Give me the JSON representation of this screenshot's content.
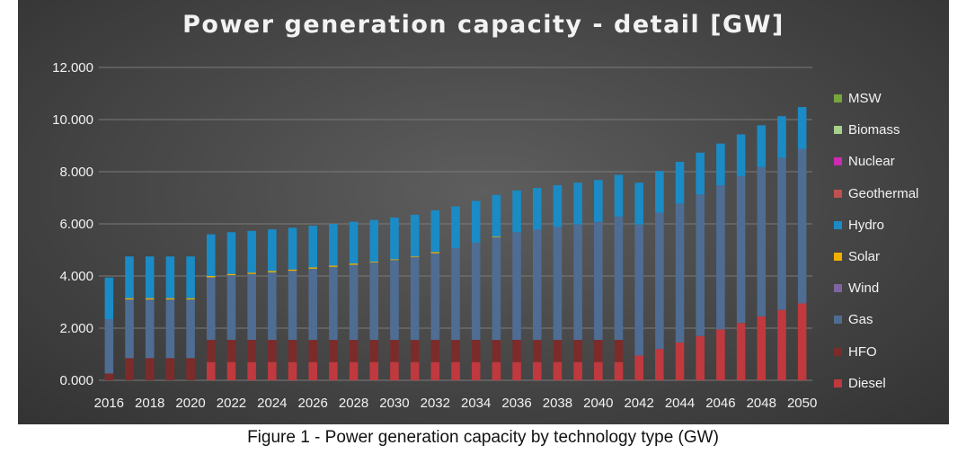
{
  "title": "Power generation capacity - detail [GW]",
  "caption": "Figure 1 - Power generation capacity by technology type (GW)",
  "chart_data": {
    "type": "bar",
    "stacked": true,
    "title": "Power generation capacity - detail [GW]",
    "xlabel": "",
    "ylabel": "",
    "ylim": [
      0,
      12000
    ],
    "yticks": [
      "0.000",
      "2.000",
      "4.000",
      "6.000",
      "8.000",
      "10.000",
      "12.000"
    ],
    "ytick_values": [
      0,
      2000,
      4000,
      6000,
      8000,
      10000,
      12000
    ],
    "grid": true,
    "legend_position": "right",
    "categories": [
      "2016",
      "2017",
      "2018",
      "2019",
      "2020",
      "2021",
      "2022",
      "2023",
      "2024",
      "2025",
      "2026",
      "2027",
      "2028",
      "2029",
      "2030",
      "2031",
      "2032",
      "2033",
      "2034",
      "2035",
      "2036",
      "2037",
      "2038",
      "2039",
      "2040",
      "2041",
      "2042",
      "2043",
      "2044",
      "2045",
      "2046",
      "2047",
      "2048",
      "2049",
      "2050"
    ],
    "xtick_labels": [
      "2016",
      "2018",
      "2020",
      "2022",
      "2024",
      "2026",
      "2028",
      "2030",
      "2032",
      "2034",
      "2036",
      "2038",
      "2040",
      "2042",
      "2044",
      "2046",
      "2048",
      "2050"
    ],
    "series": [
      {
        "name": "Diesel",
        "color": "#c0393e",
        "values": [
          0,
          0,
          0,
          0,
          0,
          700,
          700,
          700,
          700,
          700,
          700,
          700,
          700,
          700,
          700,
          700,
          700,
          700,
          700,
          700,
          700,
          700,
          700,
          700,
          700,
          700,
          950,
          1200,
          1450,
          1700,
          1950,
          2200,
          2450,
          2700,
          2950
        ]
      },
      {
        "name": "HFO",
        "color": "#7b2c2a",
        "values": [
          260,
          850,
          850,
          850,
          850,
          850,
          850,
          850,
          850,
          850,
          850,
          850,
          850,
          850,
          850,
          850,
          850,
          850,
          850,
          850,
          850,
          850,
          850,
          850,
          850,
          850,
          0,
          0,
          0,
          0,
          0,
          0,
          0,
          0,
          0
        ]
      },
      {
        "name": "Gas",
        "color": "#4f6d92",
        "values": [
          2080,
          2250,
          2250,
          2250,
          2250,
          2400,
          2480,
          2530,
          2590,
          2650,
          2730,
          2800,
          2880,
          2970,
          3060,
          3170,
          3320,
          3520,
          3730,
          3930,
          4130,
          4230,
          4330,
          4430,
          4530,
          4730,
          5030,
          5230,
          5330,
          5430,
          5530,
          5630,
          5730,
          5830,
          5930
        ]
      },
      {
        "name": "Wind",
        "color": "#8064a2",
        "values": [
          0,
          0,
          0,
          0,
          0,
          0,
          0,
          0,
          0,
          0,
          0,
          0,
          0,
          0,
          0,
          0,
          0,
          0,
          0,
          0,
          0,
          0,
          0,
          0,
          0,
          0,
          0,
          0,
          0,
          0,
          0,
          0,
          0,
          0,
          0
        ]
      },
      {
        "name": "Solar",
        "color": "#f0b000",
        "values": [
          0,
          50,
          50,
          50,
          50,
          50,
          50,
          50,
          50,
          50,
          50,
          50,
          50,
          30,
          30,
          30,
          50,
          0,
          0,
          30,
          0,
          0,
          0,
          0,
          0,
          0,
          0,
          0,
          0,
          0,
          0,
          0,
          0,
          0,
          0
        ]
      },
      {
        "name": "Hydro",
        "color": "#1b8bc6",
        "values": [
          1600,
          1600,
          1600,
          1600,
          1600,
          1600,
          1600,
          1600,
          1600,
          1600,
          1600,
          1600,
          1600,
          1600,
          1600,
          1600,
          1600,
          1600,
          1600,
          1600,
          1600,
          1600,
          1600,
          1600,
          1600,
          1600,
          1600,
          1600,
          1600,
          1600,
          1600,
          1600,
          1600,
          1600,
          1600
        ]
      },
      {
        "name": "Geothermal",
        "color": "#c0504d",
        "values": [
          0,
          0,
          0,
          0,
          0,
          0,
          0,
          0,
          0,
          0,
          0,
          0,
          0,
          0,
          0,
          0,
          0,
          0,
          0,
          0,
          0,
          0,
          0,
          0,
          0,
          0,
          0,
          0,
          0,
          0,
          0,
          0,
          0,
          0,
          0
        ]
      },
      {
        "name": "Nuclear",
        "color": "#cc2bb2",
        "values": [
          0,
          0,
          0,
          0,
          0,
          0,
          0,
          0,
          0,
          0,
          0,
          0,
          0,
          0,
          0,
          0,
          0,
          0,
          0,
          0,
          0,
          0,
          0,
          0,
          0,
          0,
          0,
          0,
          0,
          0,
          0,
          0,
          0,
          0,
          0
        ]
      },
      {
        "name": "Biomass",
        "color": "#a8d08d",
        "values": [
          0,
          0,
          0,
          0,
          0,
          0,
          0,
          0,
          0,
          0,
          0,
          0,
          0,
          0,
          0,
          0,
          0,
          0,
          0,
          0,
          0,
          0,
          0,
          0,
          0,
          0,
          0,
          0,
          0,
          0,
          0,
          0,
          0,
          0,
          0
        ]
      },
      {
        "name": "MSW",
        "color": "#77a53c",
        "values": [
          0,
          0,
          0,
          0,
          0,
          0,
          0,
          0,
          0,
          0,
          0,
          0,
          0,
          0,
          0,
          0,
          0,
          0,
          0,
          0,
          0,
          0,
          0,
          0,
          0,
          0,
          0,
          0,
          0,
          0,
          0,
          0,
          0,
          0,
          0
        ]
      }
    ]
  },
  "legend": [
    {
      "label": "MSW",
      "color": "#77a53c"
    },
    {
      "label": "Biomass",
      "color": "#a8d08d"
    },
    {
      "label": "Nuclear",
      "color": "#cc2bb2"
    },
    {
      "label": "Geothermal",
      "color": "#c0504d"
    },
    {
      "label": "Hydro",
      "color": "#1b8bc6"
    },
    {
      "label": "Solar",
      "color": "#f0b000"
    },
    {
      "label": "Wind",
      "color": "#8064a2"
    },
    {
      "label": "Gas",
      "color": "#4f6d92"
    },
    {
      "label": "HFO",
      "color": "#7b2c2a"
    },
    {
      "label": "Diesel",
      "color": "#c0393e"
    }
  ]
}
